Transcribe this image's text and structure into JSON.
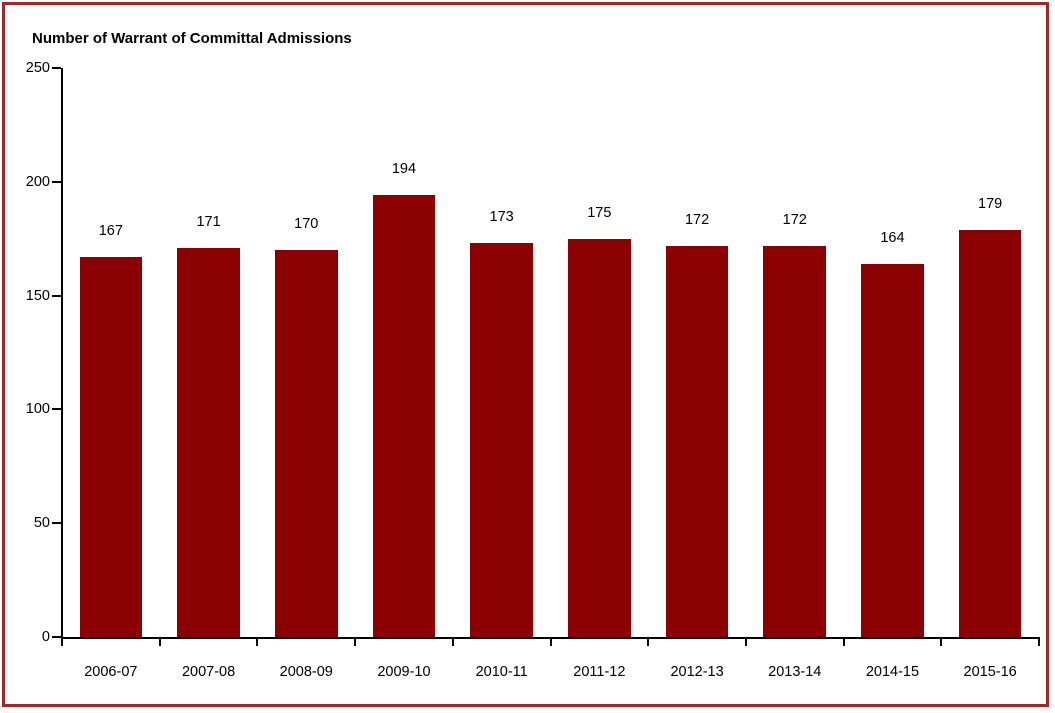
{
  "chart_data": {
    "type": "bar",
    "title": "Number of Warrant of Committal Admissions",
    "categories": [
      "2006-07",
      "2007-08",
      "2008-09",
      "2009-10",
      "2010-11",
      "2011-12",
      "2012-13",
      "2013-14",
      "2014-15",
      "2015-16"
    ],
    "values": [
      167,
      171,
      170,
      194,
      173,
      175,
      172,
      172,
      164,
      179
    ],
    "xlabel": "",
    "ylabel": "",
    "ylim": [
      0,
      250
    ],
    "yticks": [
      0,
      50,
      100,
      150,
      200,
      250
    ],
    "grid": false,
    "legend": "none",
    "value_labels": true,
    "colors": {
      "bar": "#8B0000",
      "frame_border": "#9E2B2B",
      "axis": "#000000",
      "text": "#000000"
    }
  }
}
